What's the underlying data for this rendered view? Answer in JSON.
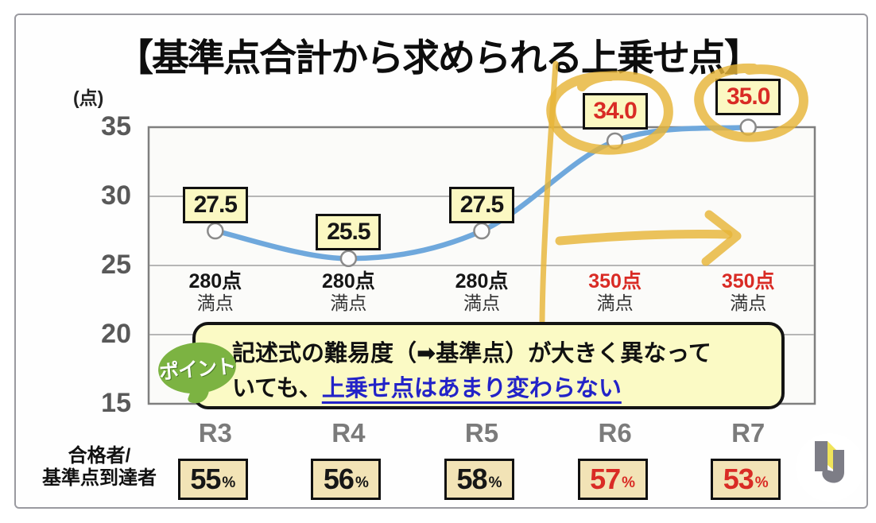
{
  "title": "【基準点合計から求められる上乗せ点】",
  "y_axis": {
    "unit_label": "(点)"
  },
  "chart_data": {
    "type": "line",
    "title": "【基準点合計から求められる上乗せ点】",
    "ylabel": "(点)",
    "categories": [
      "R3",
      "R4",
      "R5",
      "R6",
      "R7"
    ],
    "values": [
      27.5,
      25.5,
      27.5,
      34.0,
      35.0
    ],
    "point_labels": [
      "27.5",
      "25.5",
      "27.5",
      "34.0",
      "35.0"
    ],
    "point_label_emphasis": [
      false,
      false,
      false,
      true,
      true
    ],
    "max_point_notes": [
      {
        "points": "280点",
        "suffix": "満点",
        "emphasis": false
      },
      {
        "points": "280点",
        "suffix": "満点",
        "emphasis": false
      },
      {
        "points": "280点",
        "suffix": "満点",
        "emphasis": false
      },
      {
        "points": "350点",
        "suffix": "満点",
        "emphasis": true
      },
      {
        "points": "350点",
        "suffix": "満点",
        "emphasis": true
      }
    ],
    "yticks": [
      35,
      30,
      25,
      20,
      15
    ],
    "ylim": [
      15,
      35
    ],
    "grid": true,
    "legend": "none",
    "hand_annotations": [
      {
        "type": "circle",
        "target": "34.0"
      },
      {
        "type": "circle",
        "target": "35.0"
      },
      {
        "type": "line",
        "orientation": "vertical",
        "between": [
          "R5",
          "R6"
        ]
      },
      {
        "type": "arrow",
        "direction": "right",
        "span": [
          "R6",
          "R7"
        ]
      }
    ]
  },
  "callout": {
    "badge": "ポイント",
    "line1": "記述式の難易度（➡基準点）が大きく異なって",
    "line2_prefix": "いても、",
    "line2_highlight": "上乗せ点はあまり変わらない"
  },
  "footer": {
    "row_label_line1": "合格者/",
    "row_label_line2": "基準点到達者",
    "percent_unit": "%",
    "percents": [
      {
        "value": "55",
        "emphasis": false
      },
      {
        "value": "56",
        "emphasis": false
      },
      {
        "value": "58",
        "emphasis": false
      },
      {
        "value": "57",
        "emphasis": true
      },
      {
        "value": "53",
        "emphasis": true
      }
    ]
  },
  "colors": {
    "black_text": "#161616",
    "red": "#D92B25",
    "blue_underline": "#2323C8",
    "line_blue": "#6FA8DC",
    "marker_ring": "#8a8a8a",
    "hand_yellow": "#E7B438",
    "label_bg": "#FBF8C2",
    "percent_bg": "#F2E3B6",
    "callout_bg": "#FBFAC5",
    "badge_green": "#7CB342",
    "axis_gray": "#595959",
    "xlabel_gray": "#7b7b7b",
    "grid_gray": "#ACACAC",
    "frame_gray": "#7f7f7f"
  }
}
